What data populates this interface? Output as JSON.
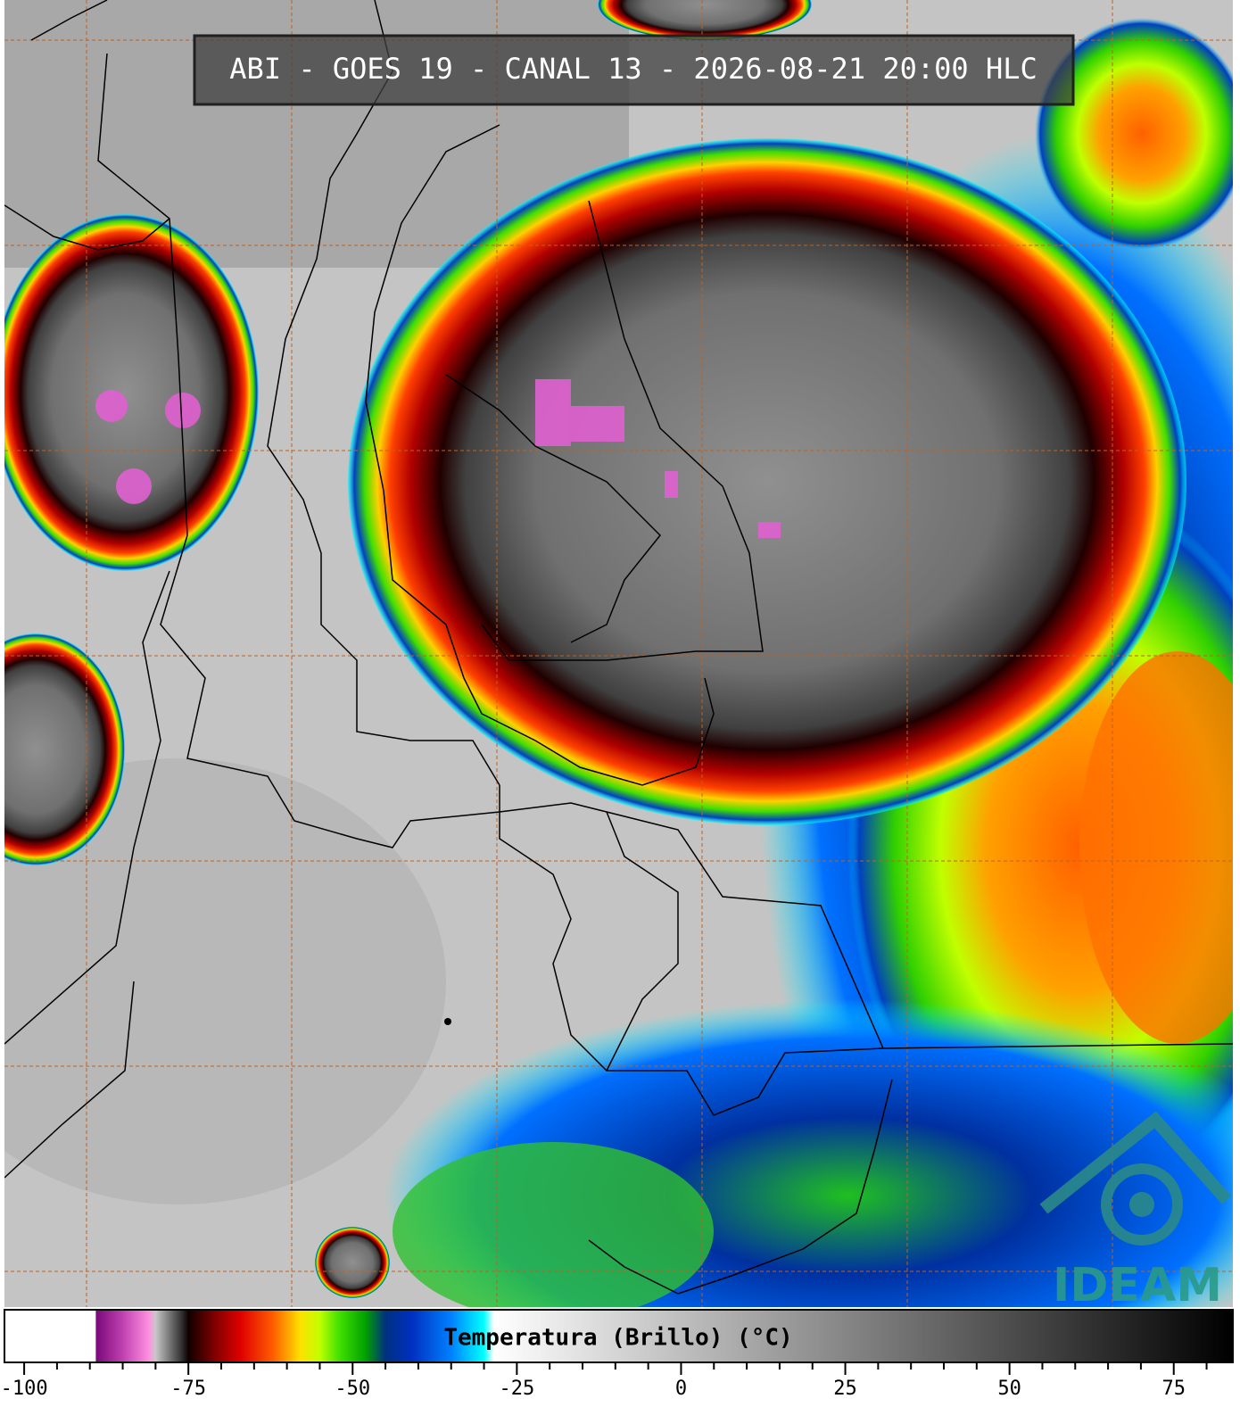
{
  "title": "ABI - GOES 19 - CANAL 13 - 2026-08-21 20:00 HLC",
  "logo": "IDEAM",
  "colorbar": {
    "label": "Temperatura (Brillo) (°C)",
    "lim": [
      -103,
      84
    ],
    "ticks": [
      -100,
      -75,
      -50,
      -25,
      0,
      25,
      50,
      75
    ],
    "minor_ticks": [
      -95,
      -90,
      -85,
      -80,
      -70,
      -65,
      -60,
      -55,
      -45,
      -40,
      -35,
      -30,
      -20,
      -15,
      -10,
      -5,
      5,
      10,
      15,
      20,
      30,
      35,
      40,
      45,
      55,
      60,
      65,
      70,
      80
    ],
    "colorscale": [
      {
        "value": -103,
        "color": "#ffffff"
      },
      {
        "value": -89.2,
        "color": "#ffffff"
      },
      {
        "value": -89,
        "color": "#7a0a7a"
      },
      {
        "value": -85,
        "color": "#c040b0"
      },
      {
        "value": -81,
        "color": "#ff90e0"
      },
      {
        "value": -80,
        "color": "#c8c8c8"
      },
      {
        "value": -76,
        "color": "#303030"
      },
      {
        "value": -75,
        "color": "#100000"
      },
      {
        "value": -71,
        "color": "#800000"
      },
      {
        "value": -67,
        "color": "#e00000"
      },
      {
        "value": -62,
        "color": "#ff6000"
      },
      {
        "value": -58,
        "color": "#ffe000"
      },
      {
        "value": -55,
        "color": "#c0ff00"
      },
      {
        "value": -52,
        "color": "#40e000"
      },
      {
        "value": -48,
        "color": "#00a000"
      },
      {
        "value": -45,
        "color": "#003080"
      },
      {
        "value": -41,
        "color": "#0030c0"
      },
      {
        "value": -35,
        "color": "#0080ff"
      },
      {
        "value": -30,
        "color": "#00ffff"
      },
      {
        "value": -28.5,
        "color": "#ffffff"
      },
      {
        "value": 84,
        "color": "#000000"
      }
    ]
  }
}
